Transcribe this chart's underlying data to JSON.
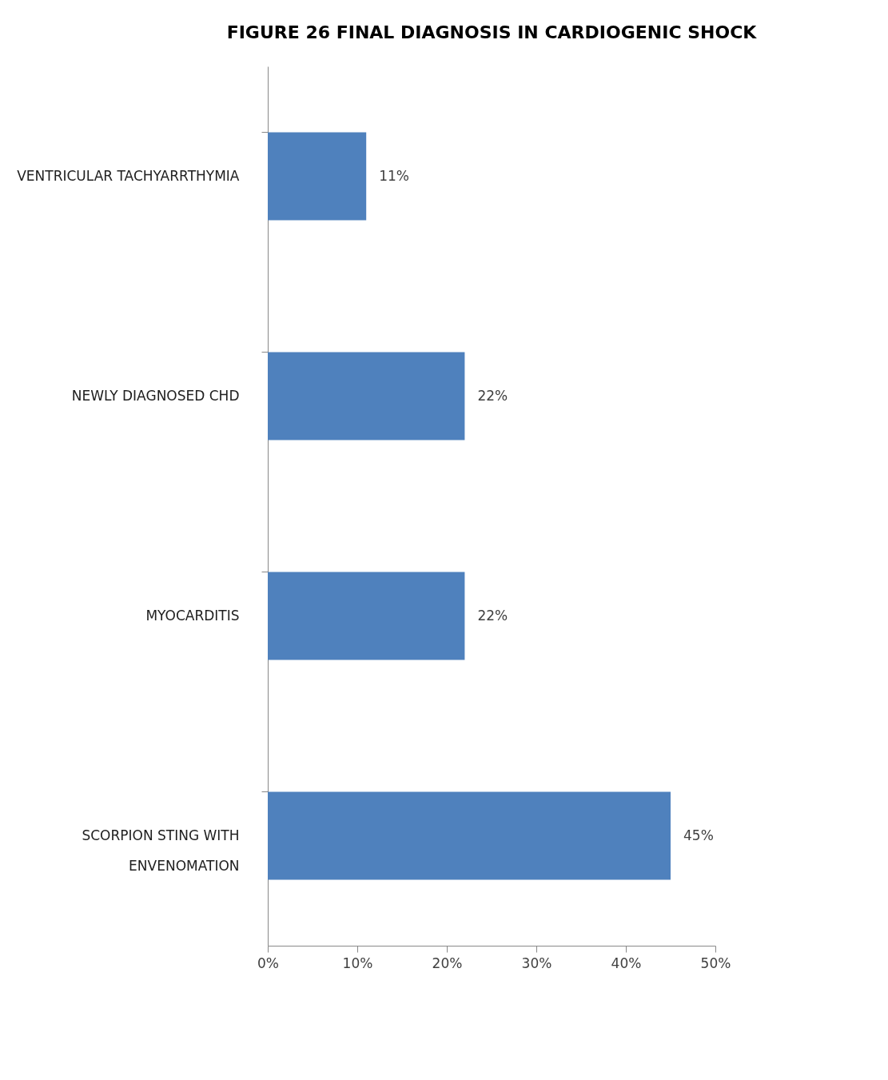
{
  "chart_data": {
    "type": "bar",
    "orientation": "horizontal",
    "title": "FIGURE 26 FINAL DIAGNOSIS IN CARDIOGENIC SHOCK",
    "categories": [
      "VENTRICULAR TACHYARRTHYMIA",
      "NEWLY DIAGNOSED CHD",
      "MYOCARDITIS",
      "SCORPION STING WITH\nENVENOMATION"
    ],
    "values": [
      11,
      22,
      22,
      45
    ],
    "color": "#4f81bd",
    "value_labels": [
      "11%",
      "22%",
      "22%",
      "45%"
    ],
    "xlim": [
      0,
      50
    ],
    "xticks": [
      {
        "value": 0,
        "label": "0%"
      },
      {
        "value": 10,
        "label": "10%"
      },
      {
        "value": 20,
        "label": "20%"
      },
      {
        "value": 30,
        "label": "30%"
      },
      {
        "value": 40,
        "label": "40%"
      },
      {
        "value": 50,
        "label": "50%"
      }
    ],
    "grid": false
  }
}
